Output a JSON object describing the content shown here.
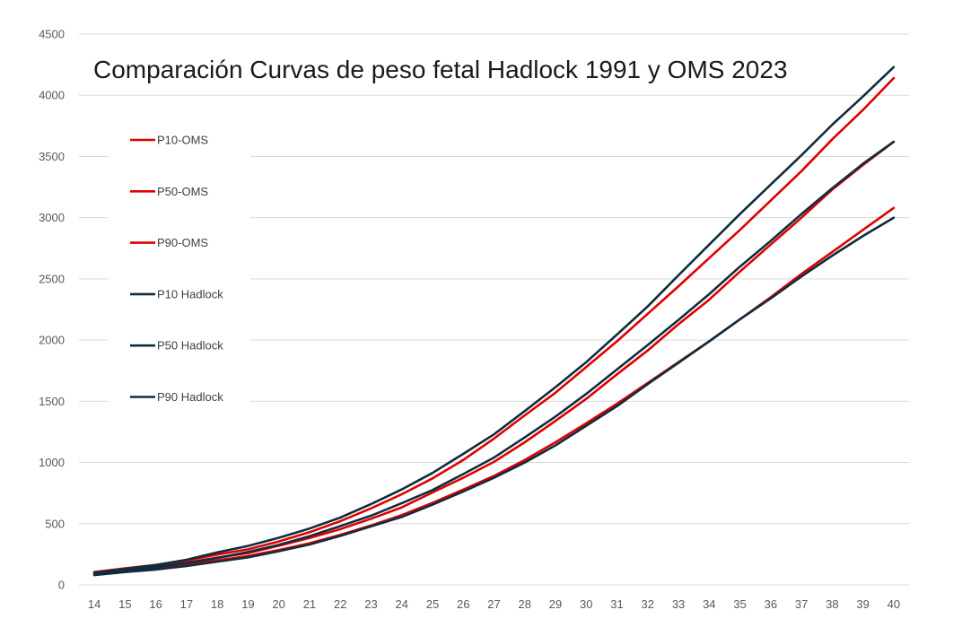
{
  "chart_data": {
    "type": "line",
    "title": "Comparación Curvas de peso fetal Hadlock 1991  y OMS 2023",
    "xlabel": "",
    "ylabel": "",
    "x": [
      14,
      15,
      16,
      17,
      18,
      19,
      20,
      21,
      22,
      23,
      24,
      25,
      26,
      27,
      28,
      29,
      30,
      31,
      32,
      33,
      34,
      35,
      36,
      37,
      38,
      39,
      40
    ],
    "ylim": [
      0,
      4500
    ],
    "yticks": [
      0,
      500,
      1000,
      1500,
      2000,
      2500,
      3000,
      3500,
      4000,
      4500
    ],
    "grid": true,
    "legend_placement": "left",
    "series": [
      {
        "name": "P10-OMS",
        "color": "#e00000",
        "values": [
          85,
          110,
          132,
          165,
          200,
          236,
          285,
          340,
          408,
          485,
          570,
          670,
          778,
          890,
          1020,
          1165,
          1320,
          1480,
          1650,
          1820,
          1990,
          2170,
          2350,
          2540,
          2720,
          2900,
          3080
        ]
      },
      {
        "name": "P50-OMS",
        "color": "#e00000",
        "values": [
          98,
          125,
          150,
          182,
          222,
          260,
          320,
          383,
          455,
          540,
          633,
          755,
          875,
          1005,
          1165,
          1340,
          1520,
          1720,
          1915,
          2130,
          2330,
          2560,
          2780,
          3000,
          3230,
          3430,
          3620
        ]
      },
      {
        "name": "P90-OMS",
        "color": "#e00000",
        "values": [
          105,
          135,
          163,
          200,
          248,
          290,
          355,
          430,
          520,
          625,
          740,
          870,
          1020,
          1195,
          1385,
          1570,
          1780,
          1990,
          2215,
          2440,
          2670,
          2900,
          3140,
          3380,
          3640,
          3880,
          4140
        ]
      },
      {
        "name": "P10 Hadlock",
        "color": "#0f2d3f",
        "values": [
          80,
          105,
          125,
          155,
          190,
          225,
          275,
          330,
          400,
          478,
          555,
          655,
          763,
          875,
          1000,
          1140,
          1300,
          1460,
          1640,
          1815,
          1990,
          2170,
          2340,
          2520,
          2690,
          2850,
          3000
        ]
      },
      {
        "name": "P50 Hadlock",
        "color": "#0f2d3f",
        "values": [
          92,
          118,
          145,
          178,
          220,
          268,
          327,
          398,
          480,
          565,
          668,
          775,
          905,
          1040,
          1205,
          1375,
          1560,
          1760,
          1960,
          2165,
          2375,
          2600,
          2810,
          3030,
          3240,
          3440,
          3620
        ]
      },
      {
        "name": "P90 Hadlock",
        "color": "#0f2d3f",
        "values": [
          100,
          130,
          162,
          205,
          265,
          318,
          385,
          460,
          550,
          660,
          780,
          915,
          1070,
          1230,
          1420,
          1615,
          1820,
          2045,
          2275,
          2530,
          2780,
          3030,
          3270,
          3510,
          3760,
          3990,
          4230
        ]
      }
    ]
  }
}
